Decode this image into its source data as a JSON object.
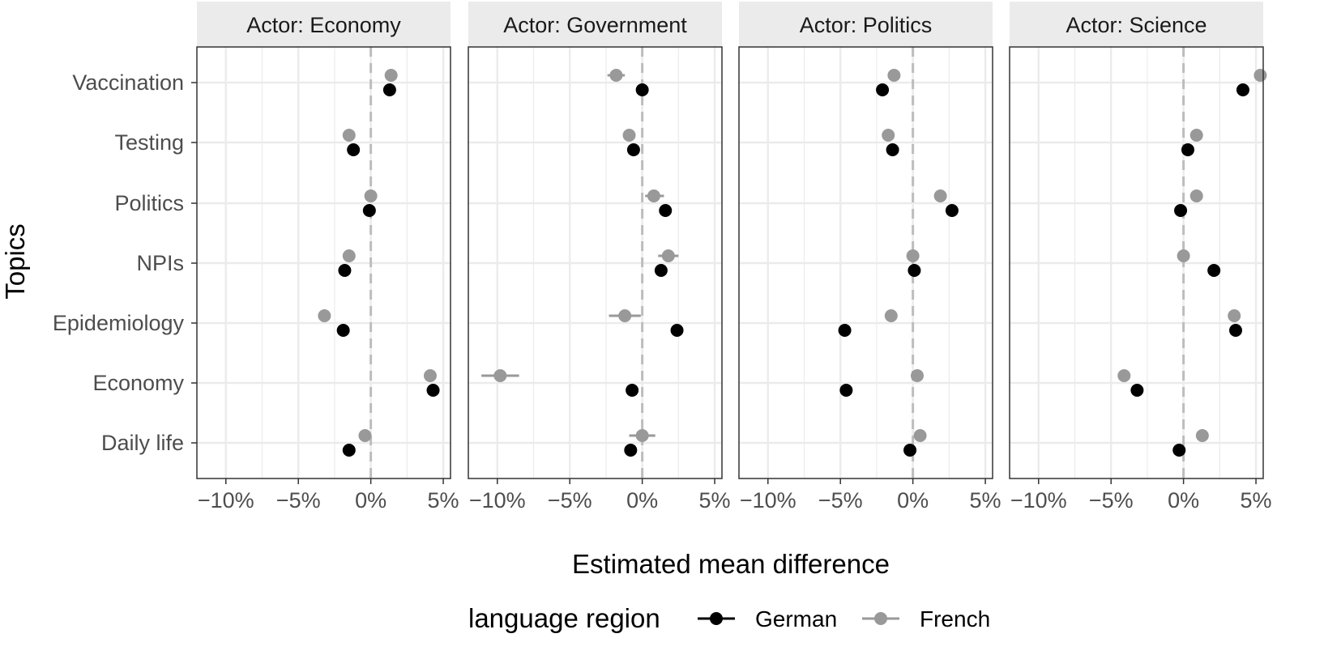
{
  "chart_data": {
    "type": "scatter",
    "subtype": "faceted dot-and-whisker plot",
    "xlabel": "Estimated mean difference",
    "ylabel": "Topics",
    "xlim": [
      -0.12,
      0.055
    ],
    "x_ticks": [
      -0.1,
      -0.05,
      0.0,
      0.05
    ],
    "x_tick_labels": [
      "−10%",
      "−5%",
      "0%",
      "5%"
    ],
    "reference_line_x": 0,
    "grid": true,
    "topics": [
      "Vaccination",
      "Testing",
      "Politics",
      "NPIs",
      "Epidemiology",
      "Economy",
      "Daily life"
    ],
    "legend": {
      "title": "language region",
      "position": "bottom",
      "entries": [
        {
          "name": "German",
          "color": "#000000"
        },
        {
          "name": "French",
          "color": "#999999"
        }
      ]
    },
    "colors": {
      "German": "#000000",
      "French": "#999999",
      "strip_bg": "#ebebeb",
      "grid": "#ebebeb",
      "zero_line": "#bdbdbd",
      "panel_border": "#333333"
    },
    "facets": [
      {
        "title": "Actor: Economy",
        "series": [
          {
            "name": "German",
            "values": [
              0.013,
              -0.012,
              -0.001,
              -0.018,
              -0.019,
              0.043,
              -0.015
            ],
            "ci": [
              [
                0.012,
                0.014
              ],
              [
                -0.013,
                -0.011
              ],
              [
                -0.002,
                0.0
              ],
              [
                -0.019,
                -0.017
              ],
              [
                -0.02,
                -0.018
              ],
              [
                0.042,
                0.044
              ],
              [
                -0.016,
                -0.014
              ]
            ]
          },
          {
            "name": "French",
            "values": [
              0.014,
              -0.015,
              0.0,
              -0.015,
              -0.032,
              0.041,
              -0.004
            ],
            "ci": [
              [
                0.013,
                0.015
              ],
              [
                -0.016,
                -0.014
              ],
              [
                -0.001,
                0.001
              ],
              [
                -0.016,
                -0.014
              ],
              [
                -0.033,
                -0.031
              ],
              [
                0.04,
                0.042
              ],
              [
                -0.005,
                -0.003
              ]
            ]
          }
        ]
      },
      {
        "title": "Actor: Government",
        "series": [
          {
            "name": "German",
            "values": [
              0.0,
              -0.006,
              0.016,
              0.013,
              0.024,
              -0.007,
              -0.008
            ],
            "ci": [
              [
                -0.001,
                0.001
              ],
              [
                -0.007,
                -0.005
              ],
              [
                0.015,
                0.017
              ],
              [
                0.012,
                0.014
              ],
              [
                0.023,
                0.025
              ],
              [
                -0.008,
                -0.006
              ],
              [
                -0.009,
                -0.007
              ]
            ]
          },
          {
            "name": "French",
            "values": [
              -0.018,
              -0.009,
              0.008,
              0.018,
              -0.012,
              -0.098,
              0.0
            ],
            "ci": [
              [
                -0.024,
                -0.012
              ],
              [
                -0.013,
                -0.005
              ],
              [
                0.002,
                0.015
              ],
              [
                0.011,
                0.025
              ],
              [
                -0.023,
                -0.001
              ],
              [
                -0.111,
                -0.085
              ],
              [
                -0.009,
                0.009
              ]
            ]
          }
        ]
      },
      {
        "title": "Actor: Politics",
        "series": [
          {
            "name": "German",
            "values": [
              -0.021,
              -0.014,
              0.027,
              0.001,
              -0.047,
              -0.046,
              -0.002
            ],
            "ci": [
              [
                -0.022,
                -0.02
              ],
              [
                -0.015,
                -0.013
              ],
              [
                0.026,
                0.028
              ],
              [
                0.0,
                0.002
              ],
              [
                -0.048,
                -0.046
              ],
              [
                -0.047,
                -0.045
              ],
              [
                -0.003,
                -0.001
              ]
            ]
          },
          {
            "name": "French",
            "values": [
              -0.013,
              -0.017,
              0.019,
              0.0,
              -0.015,
              0.003,
              0.005
            ],
            "ci": [
              [
                -0.014,
                -0.012
              ],
              [
                -0.018,
                -0.016
              ],
              [
                0.018,
                0.02
              ],
              [
                -0.001,
                0.001
              ],
              [
                -0.016,
                -0.014
              ],
              [
                0.002,
                0.004
              ],
              [
                0.004,
                0.006
              ]
            ]
          }
        ]
      },
      {
        "title": "Actor: Science",
        "series": [
          {
            "name": "German",
            "values": [
              0.041,
              0.003,
              -0.002,
              0.021,
              0.036,
              -0.032,
              -0.003
            ],
            "ci": [
              [
                0.04,
                0.042
              ],
              [
                0.002,
                0.004
              ],
              [
                -0.003,
                -0.001
              ],
              [
                0.02,
                0.022
              ],
              [
                0.035,
                0.037
              ],
              [
                -0.033,
                -0.031
              ],
              [
                -0.004,
                -0.002
              ]
            ]
          },
          {
            "name": "French",
            "values": [
              0.053,
              0.009,
              0.009,
              0.0,
              0.035,
              -0.041,
              0.013
            ],
            "ci": [
              [
                0.052,
                0.054
              ],
              [
                0.008,
                0.01
              ],
              [
                0.008,
                0.01
              ],
              [
                -0.001,
                0.001
              ],
              [
                0.034,
                0.036
              ],
              [
                -0.042,
                -0.04
              ],
              [
                0.012,
                0.014
              ]
            ]
          }
        ]
      }
    ]
  }
}
